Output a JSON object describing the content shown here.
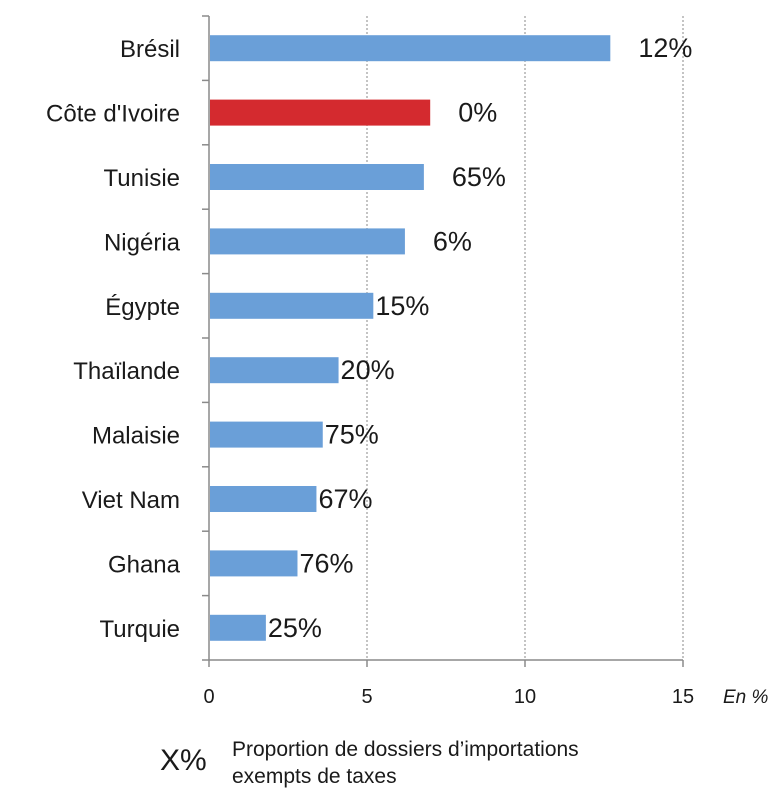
{
  "chart_data": {
    "type": "bar",
    "orientation": "horizontal",
    "categories": [
      "Brésil",
      "Côte d'Ivoire",
      "Tunisie",
      "Nigéria",
      "Égypte",
      "Thaïlande",
      "Malaisie",
      "Viet Nam",
      "Ghana",
      "Turquie"
    ],
    "values": [
      12.7,
      7.0,
      6.8,
      6.2,
      5.2,
      4.1,
      3.6,
      3.4,
      2.8,
      1.8
    ],
    "data_labels": [
      "12%",
      "0%",
      "65%",
      "6%",
      "15%",
      "20%",
      "75%",
      "67%",
      "76%",
      "25%"
    ],
    "bar_colors": [
      "#6a9fd8",
      "#d42a2f",
      "#6a9fd8",
      "#6a9fd8",
      "#6a9fd8",
      "#6a9fd8",
      "#6a9fd8",
      "#6a9fd8",
      "#6a9fd8",
      "#6a9fd8"
    ],
    "xlim": [
      0,
      15
    ],
    "x_ticks": [
      0,
      5,
      10,
      15
    ],
    "x_unit_label": "En %",
    "gridlines": "vertical dotted",
    "legend": {
      "symbol": "X%",
      "text_line1": "Proportion de dossiers d’importations",
      "text_line2": "exempts de taxes"
    }
  }
}
